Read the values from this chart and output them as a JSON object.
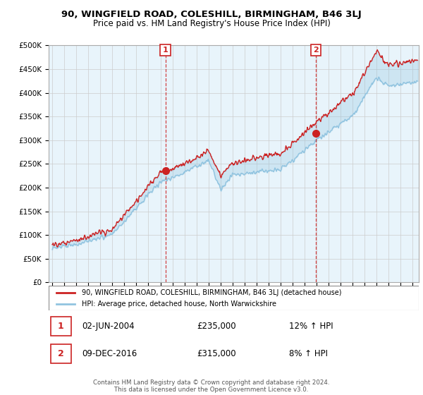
{
  "title": "90, WINGFIELD ROAD, COLESHILL, BIRMINGHAM, B46 3LJ",
  "subtitle": "Price paid vs. HM Land Registry's House Price Index (HPI)",
  "ylabel_ticks": [
    "£0",
    "£50K",
    "£100K",
    "£150K",
    "£200K",
    "£250K",
    "£300K",
    "£350K",
    "£400K",
    "£450K",
    "£500K"
  ],
  "ylim": [
    0,
    500000
  ],
  "xlim_start": 1995,
  "xlim_end": 2025.5,
  "sale1_date": 2004.42,
  "sale1_price": 235000,
  "sale1_label": "1",
  "sale2_date": 2016.92,
  "sale2_price": 315000,
  "sale2_label": "2",
  "hpi_color": "#91c4e0",
  "price_color": "#cc2222",
  "fill_color": "#d6eaf8",
  "dashed_line_color": "#cc2222",
  "marker_color": "#cc2222",
  "legend_house_label": "90, WINGFIELD ROAD, COLESHILL, BIRMINGHAM, B46 3LJ (detached house)",
  "legend_hpi_label": "HPI: Average price, detached house, North Warwickshire",
  "footer": "Contains HM Land Registry data © Crown copyright and database right 2024.\nThis data is licensed under the Open Government Licence v3.0.",
  "background_color": "#ffffff",
  "plot_bg_color": "#e8f4fb",
  "date1": "02-JUN-2004",
  "price1_str": "£235,000",
  "pct1_str": "12% ↑ HPI",
  "date2": "09-DEC-2016",
  "price2_str": "£315,000",
  "pct2_str": "8% ↑ HPI"
}
